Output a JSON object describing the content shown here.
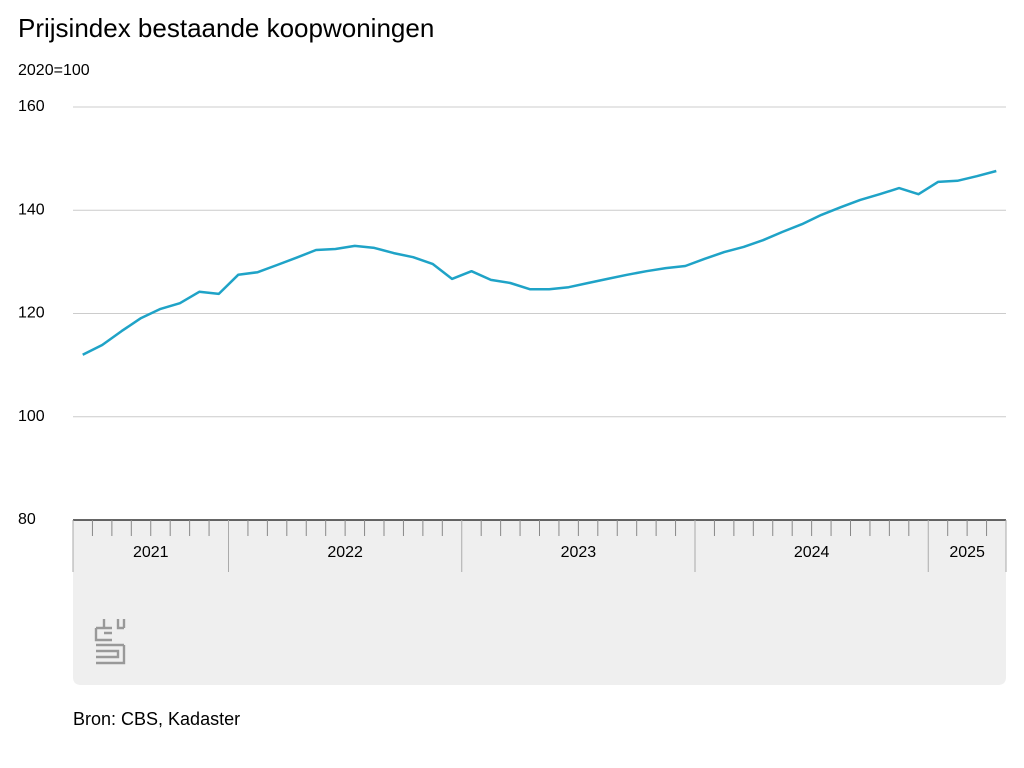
{
  "chart_data": {
    "type": "line",
    "title": "Prijsindex bestaande koopwoningen",
    "subtitle": "2020=100",
    "source": "Bron: CBS, Kadaster",
    "years": [
      "2021",
      "2022",
      "2023",
      "2024",
      "2025"
    ],
    "color": "#1fa3c7",
    "values": [
      [
        112.0,
        113.9,
        116.6,
        119.1,
        120.9,
        122.0,
        124.2,
        123.8
      ],
      [
        127.5,
        128.0,
        129.4,
        130.8,
        132.3,
        132.5,
        133.1,
        132.7,
        131.7,
        130.9,
        129.6,
        126.7
      ],
      [
        128.2,
        126.5,
        125.9,
        124.7,
        124.7,
        125.1,
        125.9,
        126.7,
        127.5,
        128.2,
        128.8,
        129.2
      ],
      [
        130.6,
        131.9,
        132.9,
        134.2,
        135.8,
        137.3,
        139.1,
        140.6,
        142.0,
        143.1,
        144.3,
        143.1
      ],
      [
        145.5,
        145.7,
        146.6,
        147.6
      ]
    ],
    "ylim": [
      80,
      160
    ],
    "yticks": [
      80,
      100,
      120,
      140,
      160
    ],
    "grid": true
  }
}
